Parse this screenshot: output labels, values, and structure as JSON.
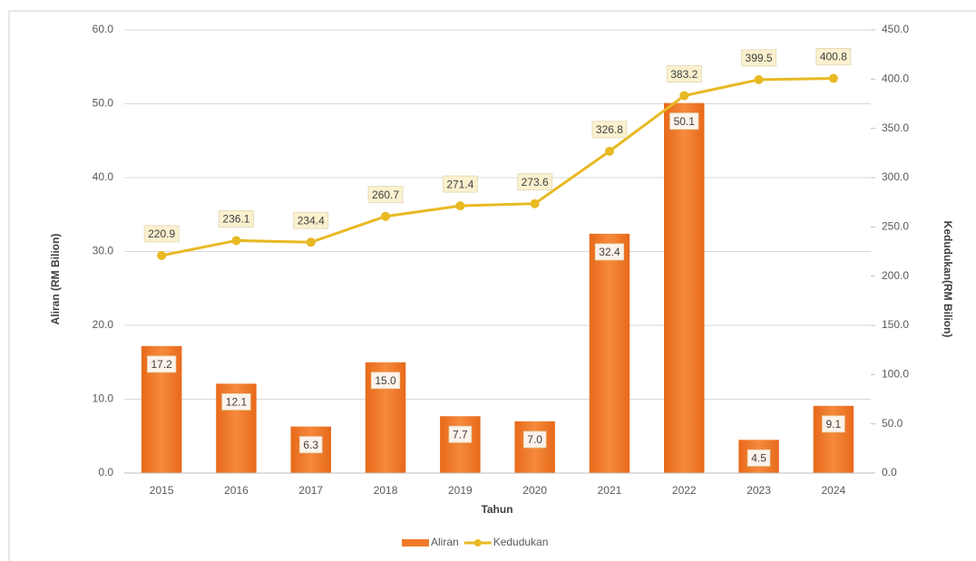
{
  "chart_data": {
    "type": "bar_line",
    "x_label": "Tahun",
    "y_label": "Aliran (RM Bilion)",
    "y2_label": "Kedudukan(RM Bilion)",
    "categories": [
      "2015",
      "2016",
      "2017",
      "2018",
      "2019",
      "2020",
      "2021",
      "2022",
      "2023",
      "2024"
    ],
    "series": [
      {
        "name": "Aliran",
        "type": "bar",
        "color": "#f07b2a",
        "values": [
          17.2,
          12.1,
          6.3,
          15.0,
          7.7,
          7.0,
          32.4,
          50.1,
          4.5,
          9.1
        ],
        "value_labels": [
          "17.2",
          "12.1",
          "6.3",
          "15.0",
          "7.7",
          "7.0",
          "32.4",
          "50.1",
          "4.5",
          "9.1"
        ]
      },
      {
        "name": "Kedudukan",
        "type": "line",
        "axis": "y2",
        "color": "#e8b923",
        "values": [
          220.9,
          236.1,
          234.4,
          260.7,
          271.4,
          273.6,
          326.8,
          383.2,
          399.5,
          400.8
        ]
      }
    ],
    "ylim": [
      0,
      60
    ],
    "yticks": [
      {
        "value": 0,
        "label": "0.0"
      },
      {
        "value": 10,
        "label": "10.0"
      },
      {
        "value": 20,
        "label": "20.0"
      },
      {
        "value": 30,
        "label": "30.0"
      },
      {
        "value": 40,
        "label": "40.0"
      },
      {
        "value": 50,
        "label": "50.0"
      },
      {
        "value": 60,
        "label": "60.0"
      }
    ],
    "y2lim": [
      0,
      450
    ],
    "y2ticks": [
      {
        "value": 0,
        "label": "0.0"
      },
      {
        "value": 50,
        "label": "50.0"
      },
      {
        "value": 100,
        "label": "100.0"
      },
      {
        "value": 150,
        "label": "150.0"
      },
      {
        "value": 200,
        "label": "200.0"
      },
      {
        "value": 250,
        "label": "250.0"
      },
      {
        "value": 300,
        "label": "300.0"
      },
      {
        "value": 350,
        "label": "350.0"
      },
      {
        "value": 400,
        "label": "400.0"
      },
      {
        "value": 450,
        "label": "450.0"
      }
    ],
    "grid": true,
    "legend": "bottom"
  }
}
